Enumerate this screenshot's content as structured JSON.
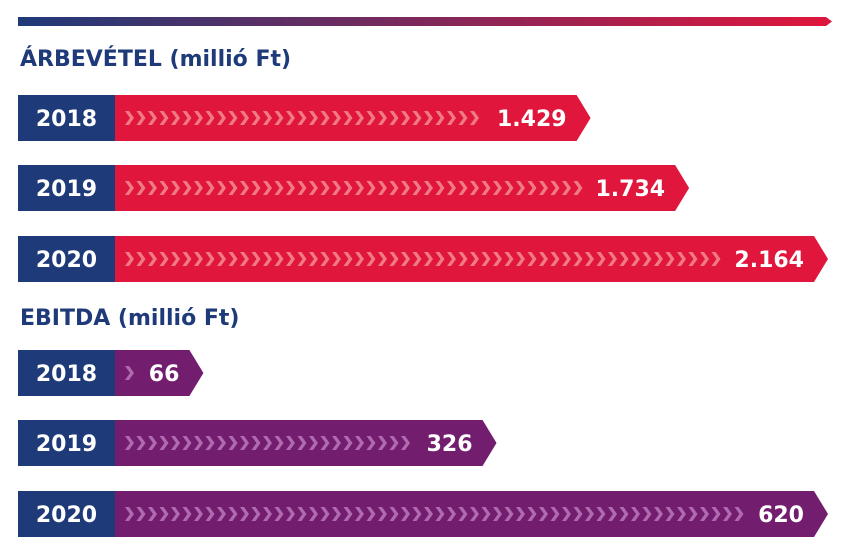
{
  "chart_data": [
    {
      "type": "bar",
      "title": "ÁRBEVÉTEL (millió Ft)",
      "categories": [
        "2018",
        "2019",
        "2020"
      ],
      "values": [
        1429,
        1734,
        2164
      ],
      "value_labels": [
        "1.429",
        "1.734",
        "2.164"
      ],
      "xlim": [
        0,
        2164
      ],
      "color": "#e0163c"
    },
    {
      "type": "bar",
      "title": "EBITDA (millió Ft)",
      "categories": [
        "2018",
        "2019",
        "2020"
      ],
      "values": [
        66,
        326,
        620
      ],
      "value_labels": [
        "66",
        "326",
        "620"
      ],
      "xlim": [
        0,
        620
      ],
      "color": "#731d6e"
    }
  ],
  "colors": {
    "year_label_bg": "#1e3a78",
    "year_label_text": "#ffffff",
    "value_text": "#ffffff",
    "chevron_on_revenue": "#f07a88",
    "chevron_on_ebitda": "#b06ab0",
    "rule_start": "#1e3a78",
    "rule_end": "#e0163c"
  }
}
